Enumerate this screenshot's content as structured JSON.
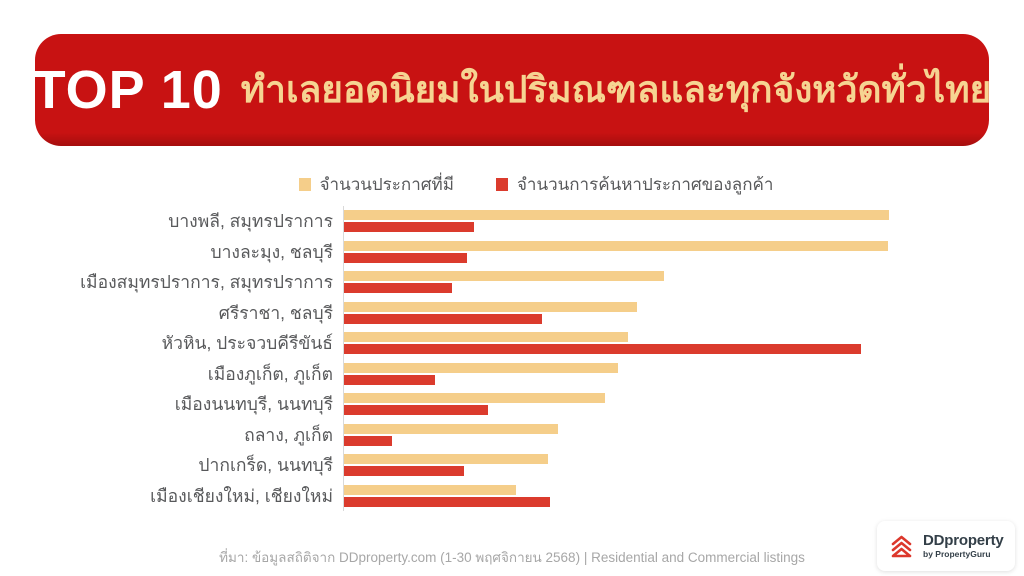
{
  "header": {
    "badge": "TOP 10",
    "title": "ทำเลยอดนิยมในปริมณฑลและทุกจังหวัดทั่วไทย"
  },
  "footer": {
    "source": "ที่มา: ข้อมูลสถิติจาก DDproperty.com (1-30 พฤศจิกายน 2568) | Residential and Commercial listings"
  },
  "logo": {
    "brand": "DDproperty",
    "sub": "by PropertyGuru"
  },
  "colors": {
    "banner-red": "#C81212",
    "banner-red-dark": "#A50E0E",
    "title-gold": "#F6D492",
    "bar-listing": "#F5CE8A",
    "bar-search": "#DB3B2D",
    "text-gray": "#58595B",
    "footer-gray": "#A7A7A7",
    "logo-navy": "#333F48",
    "logo-red": "#DC382C",
    "axis-gray": "#D9D9D9"
  },
  "chart_data": {
    "type": "bar",
    "orientation": "horizontal",
    "title": "TOP 10 ทำเลยอดนิยมในปริมณฑลและทุกจังหวัดทั่วไทย",
    "categories": [
      "บางพลี, สมุทรปราการ",
      "บางละมุง, ชลบุรี",
      "เมืองสมุทรปราการ, สมุทรปราการ",
      "ศรีราชา, ชลบุรี",
      "หัวหิน, ประจวบคีรีขันธ์",
      "เมืองภูเก็ต, ภูเก็ต",
      "เมืองนนทบุรี, นนทบุรี",
      "ถลาง, ภูเก็ต",
      "ปากเกร็ด, นนทบุรี",
      "เมืองเชียงใหม่, เชียงใหม่"
    ],
    "series": [
      {
        "name": "จำนวนประกาศที่มี",
        "color": "#F5CE8A",
        "values": [
          100,
          99.8,
          58.7,
          53.8,
          52.1,
          50.3,
          47.9,
          39.3,
          37.4,
          31.6
        ]
      },
      {
        "name": "จำนวนการค้นหาประกาศของลูกค้า",
        "color": "#DB3B2D",
        "values": [
          23.9,
          22.6,
          19.8,
          36.3,
          94.9,
          16.7,
          26.4,
          8.8,
          22.0,
          37.8
        ]
      }
    ],
    "value_axis": {
      "min": 0,
      "max": 100,
      "unit": "relative length (% of longest bar); no numeric axis shown",
      "ticks_visible": false
    },
    "grid": false,
    "legend_position": "top-center"
  }
}
